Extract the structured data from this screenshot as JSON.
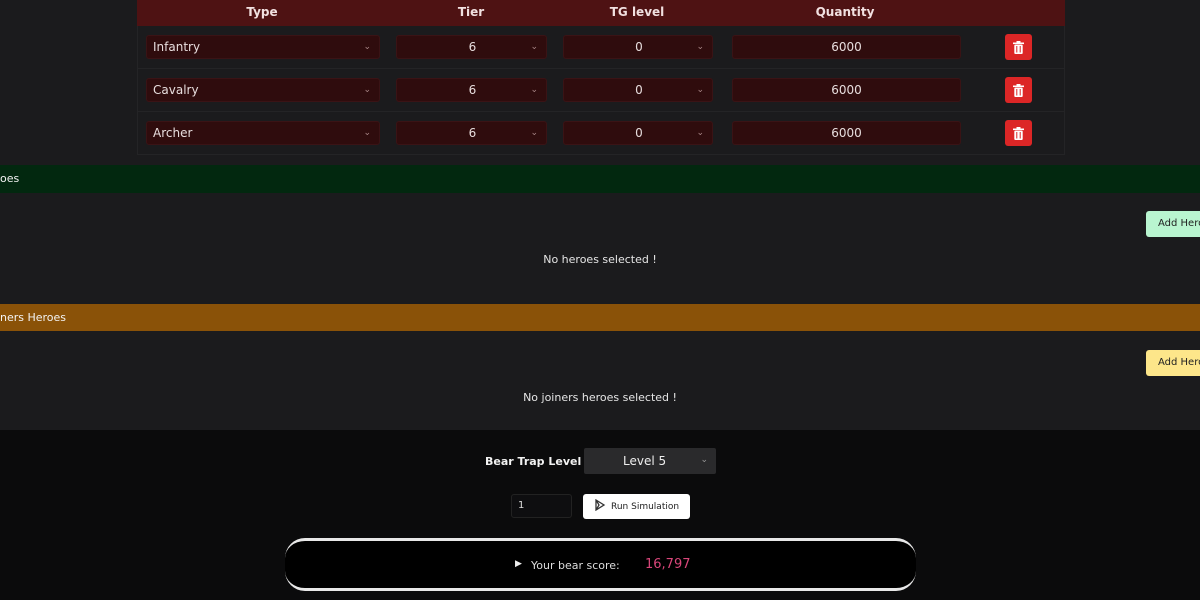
{
  "table": {
    "headers": [
      "Type",
      "Tier",
      "TG level",
      "Quantity"
    ],
    "rows": [
      {
        "type": "Infantry",
        "tier": "6",
        "tg": "0",
        "quantity": "6000"
      },
      {
        "type": "Cavalry",
        "tier": "6",
        "tg": "0",
        "quantity": "6000"
      },
      {
        "type": "Archer",
        "tier": "6",
        "tg": "0",
        "quantity": "6000"
      }
    ]
  },
  "heroes": {
    "title": "oes",
    "add_label": "Add Hero",
    "empty": "No heroes selected !",
    "color": "#02280f",
    "button_color": "#b9f5d0"
  },
  "joiners": {
    "title": "ners Heroes",
    "add_label": "Add Hero",
    "empty": "No joiners heroes selected !",
    "color": "#8a5208",
    "button_color": "#fde68a"
  },
  "bear": {
    "label": "Bear Trap Level",
    "level": "Level 5",
    "count": "1",
    "run_label": "Run Simulation",
    "score_label": "Your bear score:",
    "score": "16,797",
    "score_color": "#d9467a"
  }
}
